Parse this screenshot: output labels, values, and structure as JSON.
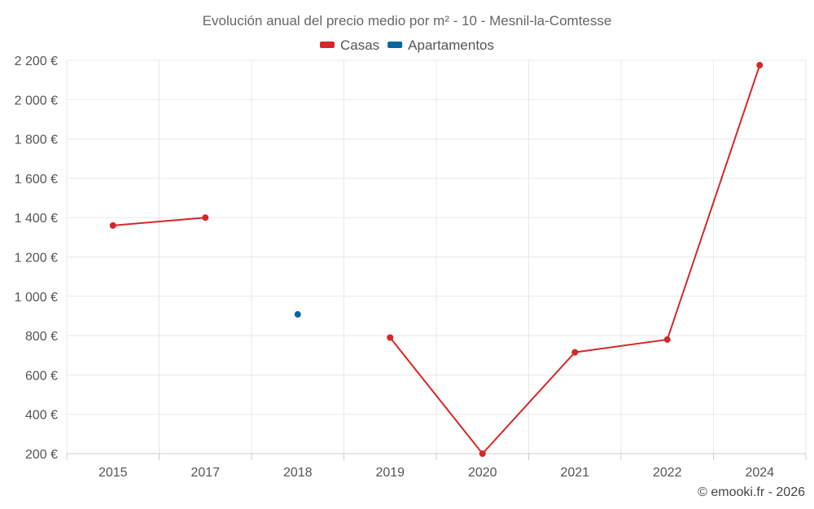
{
  "chart_data": {
    "type": "line",
    "title": "Evolución anual del precio medio por m² - 10 - Mesnil-la-Comtesse",
    "categories": [
      "2015",
      "2017",
      "2018",
      "2019",
      "2020",
      "2021",
      "2022",
      "2024"
    ],
    "ylim": [
      200,
      2200
    ],
    "yticks": [
      200,
      400,
      600,
      800,
      1000,
      1200,
      1400,
      1600,
      1800,
      2000,
      2200
    ],
    "ytick_labels": [
      "200 €",
      "400 €",
      "600 €",
      "800 €",
      "1 000 €",
      "1 200 €",
      "1 400 €",
      "1 600 €",
      "1 800 €",
      "2 000 €",
      "2 200 €"
    ],
    "grid": true,
    "legend_position": "top-center",
    "series": [
      {
        "name": "Casas",
        "color": "#d62728",
        "values": [
          1360,
          1400,
          null,
          790,
          200,
          715,
          780,
          2175
        ]
      },
      {
        "name": "Apartamentos",
        "color": "#05679e",
        "values": [
          null,
          null,
          908,
          null,
          null,
          null,
          null,
          null
        ]
      }
    ]
  },
  "credit": "© emooki.fr - 2026"
}
